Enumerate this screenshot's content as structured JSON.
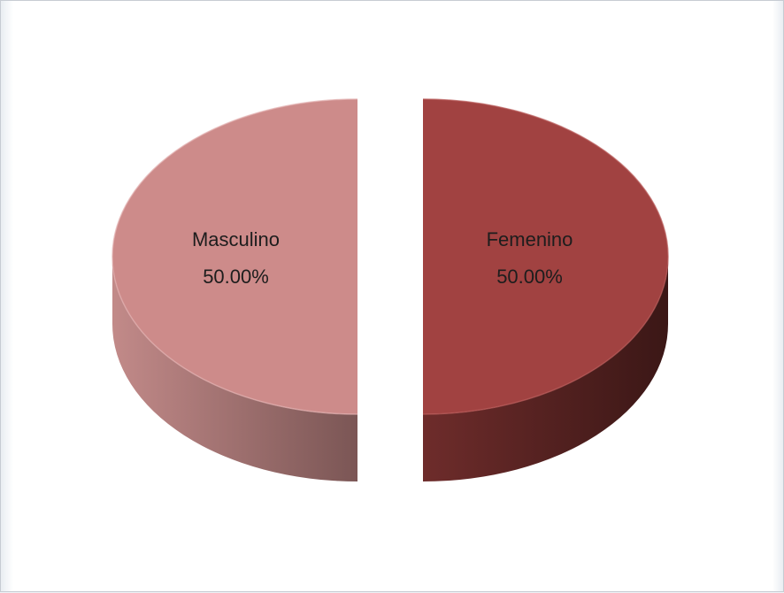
{
  "chart_data": {
    "type": "pie",
    "title": "",
    "slices": [
      {
        "label": "Masculino",
        "value": 50.0,
        "value_label": "50.00%",
        "color": "#cd8b8a",
        "side_dark": "#7b5655",
        "side_light": "#c28a89"
      },
      {
        "label": "Femenino",
        "value": 50.0,
        "value_label": "50.00%",
        "color": "#a14241",
        "side_dark": "#3b1716",
        "side_light": "#6e2c2b"
      }
    ],
    "style": "3d-exploded",
    "legend": "none"
  }
}
